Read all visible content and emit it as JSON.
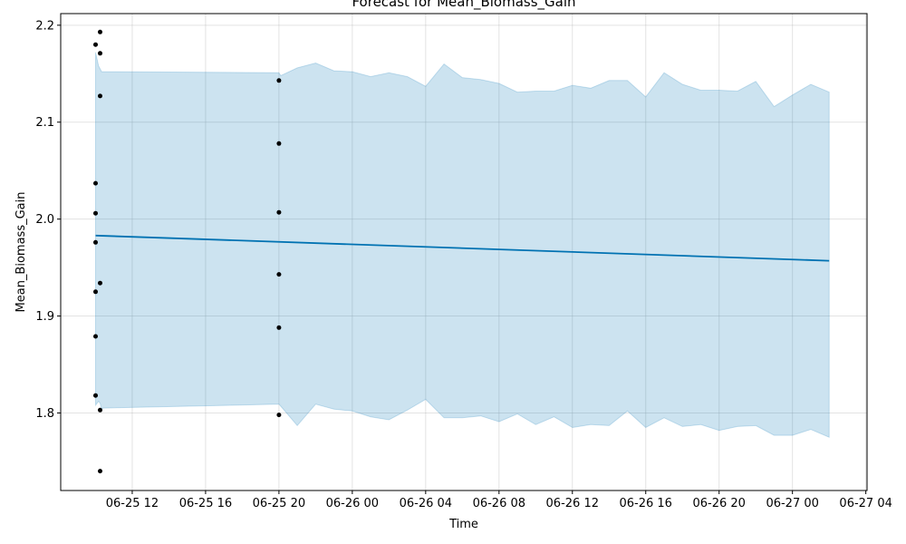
{
  "chart_data": {
    "type": "line",
    "title": "Forecast for Mean_Biomass_Gain",
    "xlabel": "Time",
    "ylabel": "Mean_Biomass_Gain",
    "grid": true,
    "x_ticks": [
      "06-25 12",
      "06-25 16",
      "06-25 20",
      "06-26 00",
      "06-26 04",
      "06-26 08",
      "06-26 12",
      "06-26 16",
      "06-26 20",
      "06-27 00",
      "06-27 04"
    ],
    "y_ticks": [
      "1.8",
      "1.9",
      "2.0",
      "2.1",
      "2.2"
    ],
    "xlim": [
      "2024-06-25 08:06",
      "2024-06-27 04:04"
    ],
    "ylim": [
      1.72,
      2.212
    ],
    "colors": {
      "forecast_line": "#0072B2",
      "uncertainty_band": "#0072B2",
      "observed_points": "#000000"
    },
    "series": [
      {
        "kind": "forecast",
        "x": [
          "2024-06-25 10:00",
          "2024-06-27 02:00"
        ],
        "y": [
          1.983,
          1.957
        ]
      },
      {
        "kind": "uncertainty_interval",
        "x": [
          "2024-06-25 10:00",
          "2024-06-25 10:10",
          "2024-06-25 10:15",
          "2024-06-25 10:20",
          "2024-06-25 10:25",
          "2024-06-25 20:00",
          "2024-06-25 20:06",
          "2024-06-25 21:00",
          "2024-06-25 22:00",
          "2024-06-25 23:00",
          "2024-06-26 00:00",
          "2024-06-26 01:00",
          "2024-06-26 02:00",
          "2024-06-26 03:00",
          "2024-06-26 04:00",
          "2024-06-26 05:00",
          "2024-06-26 06:00",
          "2024-06-26 07:00",
          "2024-06-26 08:00",
          "2024-06-26 09:00",
          "2024-06-26 10:00",
          "2024-06-26 11:00",
          "2024-06-26 12:00",
          "2024-06-26 13:00",
          "2024-06-26 14:00",
          "2024-06-26 15:00",
          "2024-06-26 16:00",
          "2024-06-26 17:00",
          "2024-06-26 18:00",
          "2024-06-26 19:00",
          "2024-06-26 20:00",
          "2024-06-26 21:00",
          "2024-06-26 22:00",
          "2024-06-26 23:00",
          "2024-06-27 00:00",
          "2024-06-27 01:00",
          "2024-06-27 02:00"
        ],
        "upper": [
          2.172,
          2.158,
          2.155,
          2.152,
          2.152,
          2.151,
          2.148,
          2.156,
          2.161,
          2.153,
          2.152,
          2.147,
          2.151,
          2.147,
          2.137,
          2.16,
          2.146,
          2.144,
          2.14,
          2.131,
          2.132,
          2.132,
          2.138,
          2.135,
          2.143,
          2.143,
          2.126,
          2.151,
          2.139,
          2.133,
          2.133,
          2.132,
          2.142,
          2.116,
          2.128,
          2.139,
          2.131
        ],
        "lower": [
          1.808,
          1.812,
          1.81,
          1.804,
          1.805,
          1.809,
          1.807,
          1.787,
          1.809,
          1.804,
          1.802,
          1.796,
          1.793,
          1.803,
          1.814,
          1.795,
          1.795,
          1.797,
          1.791,
          1.799,
          1.788,
          1.796,
          1.785,
          1.788,
          1.787,
          1.802,
          1.785,
          1.795,
          1.786,
          1.788,
          1.782,
          1.786,
          1.787,
          1.777,
          1.777,
          1.783,
          1.775
        ]
      },
      {
        "kind": "observed",
        "x": [
          "2024-06-25 10:00",
          "2024-06-25 10:00",
          "2024-06-25 10:00",
          "2024-06-25 10:00",
          "2024-06-25 10:00",
          "2024-06-25 10:00",
          "2024-06-25 10:00",
          "2024-06-25 10:15",
          "2024-06-25 10:15",
          "2024-06-25 10:15",
          "2024-06-25 10:15",
          "2024-06-25 10:15",
          "2024-06-25 10:15",
          "2024-06-25 20:00",
          "2024-06-25 20:00",
          "2024-06-25 20:00",
          "2024-06-25 20:00",
          "2024-06-25 20:00",
          "2024-06-25 20:00"
        ],
        "y": [
          2.18,
          2.037,
          2.006,
          1.976,
          1.925,
          1.879,
          1.818,
          2.193,
          2.171,
          2.127,
          1.934,
          1.803,
          1.74,
          2.143,
          2.078,
          2.007,
          1.943,
          1.888,
          1.798
        ]
      }
    ]
  }
}
